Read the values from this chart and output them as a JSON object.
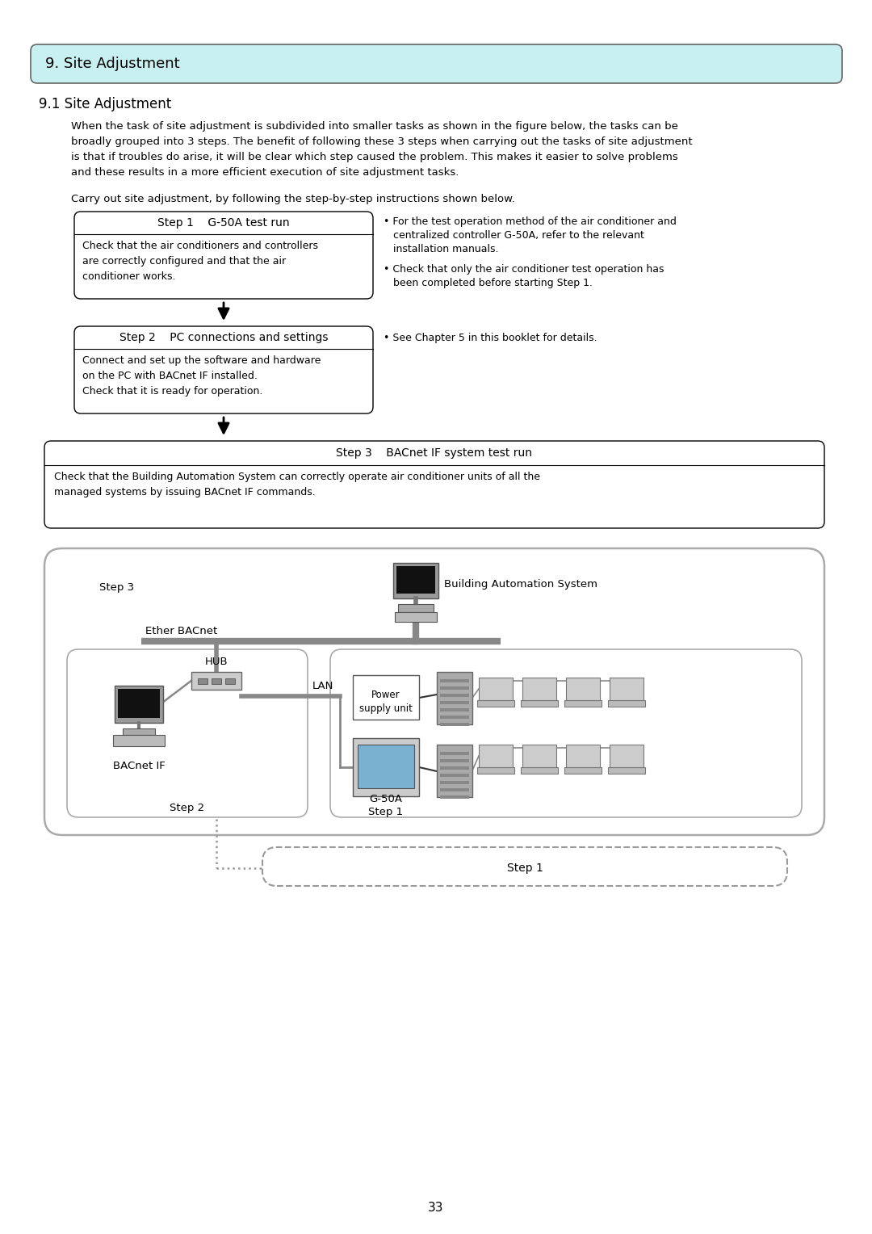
{
  "page_number": "33",
  "title_box": {
    "text": "9. Site Adjustment",
    "bg_color": "#c8f0f0",
    "border_color": "#000000"
  },
  "subtitle": "9.1 Site Adjustment",
  "paragraph1_lines": [
    "When the task of site adjustment is subdivided into smaller tasks as shown in the figure below, the tasks can be",
    "broadly grouped into 3 steps. The benefit of following these 3 steps when carrying out the tasks of site adjustment",
    "is that if troubles do arise, it will be clear which step caused the problem. This makes it easier to solve problems",
    "and these results in a more efficient execution of site adjustment tasks."
  ],
  "paragraph2": "Carry out site adjustment, by following the step-by-step instructions shown below.",
  "step1_title": "Step 1    G-50A test run",
  "step1_body": "Check that the air conditioners and controllers\nare correctly configured and that the air\nconditioner works.",
  "step2_title": "Step 2    PC connections and settings",
  "step2_body": "Connect and set up the software and hardware\non the PC with BACnet IF installed.\nCheck that it is ready for operation.",
  "step3_title": "Step 3    BACnet IF system test run",
  "step3_body": "Check that the Building Automation System can correctly operate air conditioner units of all the\nmanaged systems by issuing BACnet IF commands.",
  "bullet1_lines": [
    "• For the test operation method of the air conditioner and",
    "   centralized controller G-50A, refer to the relevant",
    "   installation manuals."
  ],
  "bullet2_lines": [
    "• Check that only the air conditioner test operation has",
    "   been completed before starting Step 1."
  ],
  "bullet3": "• See Chapter 5 in this booklet for details.",
  "bg_color": "#ffffff",
  "text_color": "#000000"
}
